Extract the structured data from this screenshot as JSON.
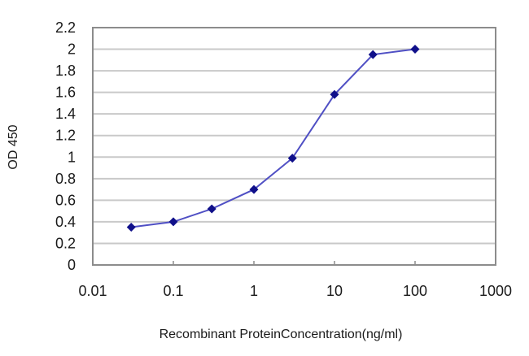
{
  "chart_data": {
    "type": "line",
    "title": "",
    "xlabel": "Recombinant ProteinConcentration(ng/ml)",
    "ylabel": "OD 450",
    "x_scale": "log",
    "xlim": [
      0.01,
      1000
    ],
    "ylim": [
      0,
      2.2
    ],
    "x_ticks": [
      "0.01",
      "0.1",
      "1",
      "10",
      "100",
      "1000"
    ],
    "x_tick_values": [
      0.01,
      0.1,
      1,
      10,
      100,
      1000
    ],
    "y_ticks": [
      "0",
      "0.2",
      "0.4",
      "0.6",
      "0.8",
      "1",
      "1.2",
      "1.4",
      "1.6",
      "1.8",
      "2",
      "2.2"
    ],
    "y_tick_values": [
      0,
      0.2,
      0.4,
      0.6,
      0.8,
      1.0,
      1.2,
      1.4,
      1.6,
      1.8,
      2.0,
      2.2
    ],
    "grid": {
      "horizontal": true,
      "vertical": false
    },
    "legend": null,
    "series": [
      {
        "name": "OD 450",
        "x": [
          0.03,
          0.1,
          0.3,
          1,
          3,
          10,
          30,
          100
        ],
        "values": [
          0.35,
          0.4,
          0.52,
          0.7,
          0.99,
          1.58,
          1.95,
          2.0
        ],
        "marker": "diamond"
      }
    ]
  },
  "style": {
    "line_color": "#4f4fc4",
    "marker_color": "#10108a",
    "grid_color": "#c9c9c9",
    "frame_color": "#8c8c8c",
    "text_color": "#1a1a1a",
    "background": "#ffffff"
  }
}
